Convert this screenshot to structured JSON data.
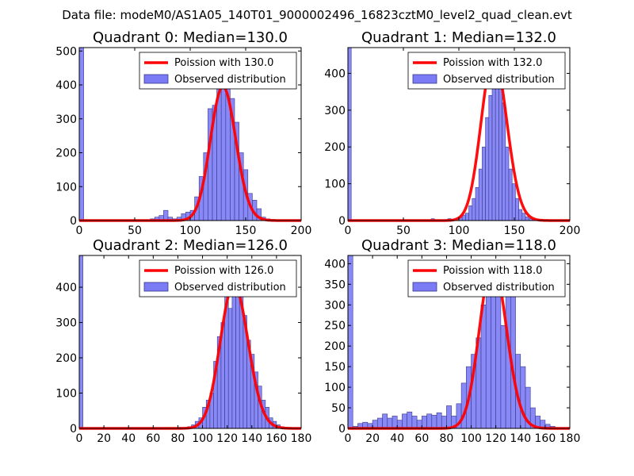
{
  "figure": {
    "suptitle": "Data file: modeM0/AS1A05_140T01_9000002496_16823cztM0_level2_quad_clean.evt"
  },
  "colors": {
    "bar": "#7b7bf5",
    "bar_edge": "#3a3a8a",
    "line": "#ff0000",
    "frame": "#000000"
  },
  "chart_data": [
    {
      "type": "bar",
      "title": "Quadrant 0: Median=130.0",
      "xlim": [
        0,
        200
      ],
      "ylim": [
        0,
        510
      ],
      "xticks": [
        "0",
        "50",
        "100",
        "150",
        "200"
      ],
      "yticks": [
        "0",
        "100",
        "200",
        "300",
        "400",
        "500"
      ],
      "xtick_values": [
        0,
        50,
        100,
        150,
        200
      ],
      "ytick_values": [
        0,
        100,
        200,
        300,
        400,
        500
      ],
      "bin_width": 4,
      "bins": [
        [
          0,
          510
        ],
        [
          64,
          5
        ],
        [
          68,
          10
        ],
        [
          72,
          15
        ],
        [
          76,
          30
        ],
        [
          80,
          10
        ],
        [
          84,
          5
        ],
        [
          88,
          10
        ],
        [
          92,
          20
        ],
        [
          96,
          25
        ],
        [
          100,
          30
        ],
        [
          104,
          70
        ],
        [
          108,
          130
        ],
        [
          112,
          200
        ],
        [
          116,
          330
        ],
        [
          120,
          340
        ],
        [
          124,
          440
        ],
        [
          128,
          470
        ],
        [
          132,
          390
        ],
        [
          136,
          360
        ],
        [
          140,
          290
        ],
        [
          144,
          200
        ],
        [
          148,
          150
        ],
        [
          152,
          80
        ],
        [
          156,
          60
        ],
        [
          160,
          35
        ],
        [
          164,
          10
        ],
        [
          168,
          5
        ],
        [
          172,
          3
        ]
      ],
      "poisson_mean": 130,
      "poisson_scale": 11300,
      "legend": {
        "line_label": "Poission with 130.0",
        "bar_label": "Observed distribution",
        "position": "top-right"
      }
    },
    {
      "type": "bar",
      "title": "Quadrant 1: Median=132.0",
      "xlim": [
        0,
        200
      ],
      "ylim": [
        0,
        470
      ],
      "xticks": [
        "0",
        "50",
        "100",
        "150",
        "200"
      ],
      "yticks": [
        "0",
        "100",
        "200",
        "300",
        "400"
      ],
      "xtick_values": [
        0,
        50,
        100,
        150,
        200
      ],
      "ytick_values": [
        0,
        100,
        200,
        300,
        400
      ],
      "bin_width": 3,
      "bins": [
        [
          0,
          470
        ],
        [
          75,
          5
        ],
        [
          90,
          5
        ],
        [
          100,
          10
        ],
        [
          103,
          15
        ],
        [
          106,
          20
        ],
        [
          109,
          40
        ],
        [
          112,
          60
        ],
        [
          115,
          90
        ],
        [
          118,
          140
        ],
        [
          121,
          200
        ],
        [
          124,
          280
        ],
        [
          127,
          340
        ],
        [
          130,
          390
        ],
        [
          133,
          430
        ],
        [
          136,
          360
        ],
        [
          139,
          320
        ],
        [
          142,
          200
        ],
        [
          145,
          140
        ],
        [
          148,
          100
        ],
        [
          151,
          60
        ],
        [
          154,
          30
        ],
        [
          157,
          20
        ],
        [
          160,
          10
        ],
        [
          163,
          5
        ],
        [
          166,
          3
        ],
        [
          169,
          2
        ],
        [
          172,
          1
        ],
        [
          175,
          1
        ],
        [
          178,
          1
        ]
      ],
      "poisson_mean": 132,
      "poisson_scale": 12900,
      "legend": {
        "line_label": "Poission with 132.0",
        "bar_label": "Observed distribution",
        "position": "top-right"
      }
    },
    {
      "type": "bar",
      "title": "Quadrant 2: Median=126.0",
      "xlim": [
        0,
        180
      ],
      "ylim": [
        0,
        490
      ],
      "xticks": [
        "0",
        "20",
        "40",
        "60",
        "80",
        "100",
        "120",
        "140",
        "160",
        "180"
      ],
      "yticks": [
        "0",
        "100",
        "200",
        "300",
        "400"
      ],
      "xtick_values": [
        0,
        20,
        40,
        60,
        80,
        100,
        120,
        140,
        160,
        180
      ],
      "ytick_values": [
        0,
        100,
        200,
        300,
        400
      ],
      "bin_width": 3,
      "bins": [
        [
          0,
          490
        ],
        [
          70,
          2
        ],
        [
          80,
          3
        ],
        [
          88,
          5
        ],
        [
          91,
          10
        ],
        [
          94,
          20
        ],
        [
          97,
          30
        ],
        [
          100,
          60
        ],
        [
          103,
          80
        ],
        [
          106,
          100
        ],
        [
          109,
          190
        ],
        [
          112,
          260
        ],
        [
          115,
          300
        ],
        [
          118,
          380
        ],
        [
          121,
          340
        ],
        [
          124,
          420
        ],
        [
          127,
          420
        ],
        [
          130,
          380
        ],
        [
          133,
          320
        ],
        [
          136,
          250
        ],
        [
          139,
          210
        ],
        [
          142,
          160
        ],
        [
          145,
          120
        ],
        [
          148,
          80
        ],
        [
          151,
          60
        ],
        [
          154,
          30
        ],
        [
          157,
          20
        ],
        [
          160,
          10
        ],
        [
          163,
          5
        ],
        [
          166,
          2
        ]
      ],
      "poisson_mean": 126,
      "poisson_scale": 11500,
      "legend": {
        "line_label": "Poission with 126.0",
        "bar_label": "Observed distribution",
        "position": "top-right"
      }
    },
    {
      "type": "bar",
      "title": "Quadrant 3: Median=118.0",
      "xlim": [
        0,
        180
      ],
      "ylim": [
        0,
        420
      ],
      "xticks": [
        "0",
        "20",
        "40",
        "60",
        "80",
        "100",
        "120",
        "140",
        "160",
        "180"
      ],
      "yticks": [
        "0",
        "50",
        "100",
        "150",
        "200",
        "250",
        "300",
        "350",
        "400"
      ],
      "xtick_values": [
        0,
        20,
        40,
        60,
        80,
        100,
        120,
        140,
        160,
        180
      ],
      "ytick_values": [
        0,
        50,
        100,
        150,
        200,
        250,
        300,
        350,
        400
      ],
      "bin_width": 4,
      "bins": [
        [
          0,
          420
        ],
        [
          4,
          5
        ],
        [
          8,
          12
        ],
        [
          12,
          15
        ],
        [
          16,
          12
        ],
        [
          20,
          20
        ],
        [
          24,
          25
        ],
        [
          28,
          35
        ],
        [
          32,
          25
        ],
        [
          36,
          30
        ],
        [
          40,
          20
        ],
        [
          44,
          35
        ],
        [
          48,
          40
        ],
        [
          52,
          30
        ],
        [
          56,
          20
        ],
        [
          60,
          30
        ],
        [
          64,
          35
        ],
        [
          68,
          32
        ],
        [
          72,
          38
        ],
        [
          76,
          30
        ],
        [
          80,
          55
        ],
        [
          84,
          30
        ],
        [
          88,
          60
        ],
        [
          92,
          110
        ],
        [
          96,
          150
        ],
        [
          100,
          180
        ],
        [
          104,
          220
        ],
        [
          108,
          300
        ],
        [
          112,
          330
        ],
        [
          116,
          390
        ],
        [
          120,
          400
        ],
        [
          124,
          250
        ],
        [
          128,
          350
        ],
        [
          132,
          330
        ],
        [
          136,
          180
        ],
        [
          140,
          150
        ],
        [
          144,
          100
        ],
        [
          148,
          50
        ],
        [
          152,
          30
        ],
        [
          156,
          20
        ],
        [
          160,
          10
        ],
        [
          164,
          5
        ],
        [
          168,
          2
        ]
      ],
      "poisson_mean": 118,
      "poisson_scale": 11000,
      "legend": {
        "line_label": "Poission with 118.0",
        "bar_label": "Observed distribution",
        "position": "top-right"
      }
    }
  ]
}
